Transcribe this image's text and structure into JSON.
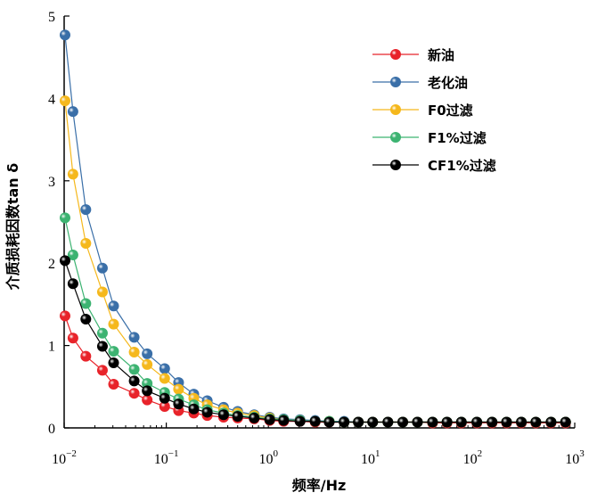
{
  "chart_data": {
    "type": "line",
    "xlabel": "频率/Hz",
    "ylabel": "介质损耗因数tan δ",
    "x_scale": "log",
    "xlim": [
      0.01,
      1000
    ],
    "ylim": [
      0,
      5
    ],
    "x_ticks": [
      {
        "value": 0.01,
        "base": "10",
        "exp": "−2"
      },
      {
        "value": 0.1,
        "base": "10",
        "exp": "−1"
      },
      {
        "value": 1,
        "base": "10",
        "exp": "0"
      },
      {
        "value": 10,
        "base": "10",
        "exp": "1"
      },
      {
        "value": 100,
        "base": "10",
        "exp": "2"
      },
      {
        "value": 1000,
        "base": "10",
        "exp": "3"
      }
    ],
    "y_ticks": [
      "0",
      "1",
      "2",
      "3",
      "4",
      "5"
    ],
    "grid": false,
    "legend_position": "top-right",
    "x": [
      0.0102,
      0.0122,
      0.0163,
      0.0237,
      0.0305,
      0.0485,
      0.065,
      0.0964,
      0.132,
      0.186,
      0.252,
      0.364,
      0.5,
      0.726,
      1.03,
      1.41,
      2.04,
      2.87,
      3.94,
      5.51,
      7.6,
      10.5,
      14.8,
      20.7,
      28.8,
      40.5,
      56.1,
      77.6,
      110,
      155,
      215,
      300,
      416,
      586,
      813
    ],
    "series": [
      {
        "name": "新油",
        "color": "#e8232a",
        "values": [
          1.36,
          1.09,
          0.87,
          0.7,
          0.53,
          0.42,
          0.34,
          0.26,
          0.21,
          0.18,
          0.15,
          0.13,
          0.12,
          0.11,
          0.09,
          0.08,
          0.08,
          0.07,
          0.07,
          0.07,
          0.07,
          0.07,
          0.07,
          0.07,
          0.07,
          0.06,
          0.06,
          0.06,
          0.06,
          0.06,
          0.06,
          0.06,
          0.06,
          0.06,
          0.06
        ]
      },
      {
        "name": "老化油",
        "color": "#3a6fa8",
        "values": [
          4.77,
          3.84,
          2.65,
          1.94,
          1.48,
          1.1,
          0.9,
          0.72,
          0.55,
          0.41,
          0.33,
          0.25,
          0.2,
          0.16,
          0.13,
          0.11,
          0.1,
          0.09,
          0.08,
          0.08,
          0.07,
          0.07,
          0.07,
          0.07,
          0.07,
          0.07,
          0.07,
          0.07,
          0.07,
          0.07,
          0.07,
          0.07,
          0.07,
          0.07,
          0.07
        ]
      },
      {
        "name": "F0过滤",
        "color": "#f5b81c",
        "values": [
          3.97,
          3.08,
          2.24,
          1.65,
          1.26,
          0.92,
          0.77,
          0.6,
          0.47,
          0.36,
          0.28,
          0.22,
          0.18,
          0.15,
          0.12,
          0.1,
          0.09,
          0.08,
          0.08,
          0.07,
          0.07,
          0.07,
          0.07,
          0.07,
          0.07,
          0.07,
          0.07,
          0.07,
          0.07,
          0.07,
          0.07,
          0.07,
          0.07,
          0.07,
          0.07
        ]
      },
      {
        "name": "F1%过滤",
        "color": "#3cb371",
        "values": [
          2.55,
          2.1,
          1.51,
          1.15,
          0.93,
          0.71,
          0.54,
          0.43,
          0.35,
          0.28,
          0.22,
          0.18,
          0.15,
          0.13,
          0.11,
          0.1,
          0.09,
          0.08,
          0.08,
          0.07,
          0.07,
          0.07,
          0.07,
          0.07,
          0.07,
          0.07,
          0.07,
          0.07,
          0.07,
          0.07,
          0.07,
          0.07,
          0.07,
          0.07,
          0.07
        ]
      },
      {
        "name": "CF1%过滤",
        "color": "#000000",
        "values": [
          2.03,
          1.75,
          1.32,
          0.99,
          0.79,
          0.57,
          0.45,
          0.36,
          0.29,
          0.23,
          0.19,
          0.16,
          0.14,
          0.12,
          0.1,
          0.09,
          0.08,
          0.08,
          0.07,
          0.07,
          0.07,
          0.07,
          0.07,
          0.07,
          0.07,
          0.07,
          0.07,
          0.07,
          0.07,
          0.07,
          0.07,
          0.07,
          0.07,
          0.07,
          0.07
        ]
      }
    ]
  }
}
